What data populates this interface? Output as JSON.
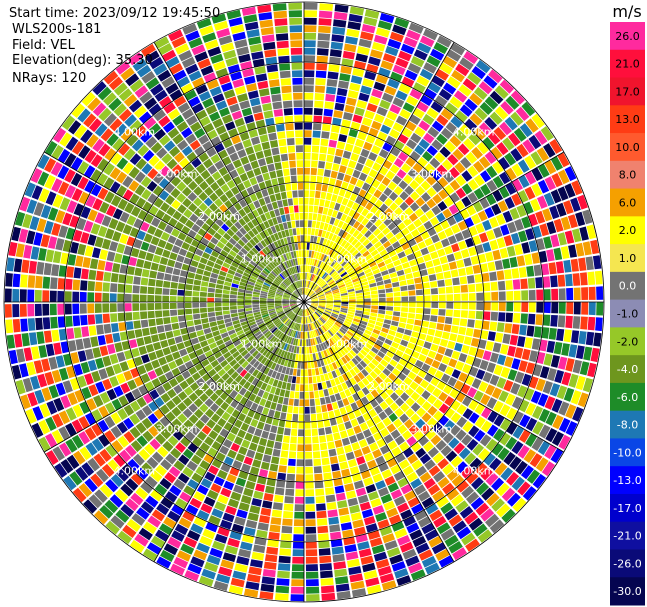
{
  "chart_data": {
    "type": "heatmap",
    "subtype": "radar-ppi",
    "info": {
      "start": "Start time: 2023/09/12 19:45:50",
      "site": "WLS200s-181",
      "field": "Field: VEL",
      "elevation": "Elevation(deg): 35.30",
      "nrays": "NRays: 120"
    },
    "nrays": 120,
    "unit": "m/s",
    "range_ring_labels": [
      "1.00km",
      "2.00km",
      "3.00km",
      "4.00km"
    ],
    "range_rings_km": [
      1,
      2,
      3,
      4,
      5
    ],
    "colorbar": [
      {
        "label": "26.0",
        "color": "#ff2a9e"
      },
      {
        "label": "21.0",
        "color": "#ff0f3c"
      },
      {
        "label": "17.0",
        "color": "#f0142d"
      },
      {
        "label": "13.0",
        "color": "#ff3c14"
      },
      {
        "label": "10.0",
        "color": "#ff5a2e"
      },
      {
        "label": "8.0",
        "color": "#f0826e"
      },
      {
        "label": "6.0",
        "color": "#f5a000"
      },
      {
        "label": "2.0",
        "color": "#ffff00"
      },
      {
        "label": "1.0",
        "color": "#f5e650"
      },
      {
        "label": "0.0",
        "color": "#737373"
      },
      {
        "label": "-1.0",
        "color": "#8c8cb4"
      },
      {
        "label": "-2.0",
        "color": "#96c828"
      },
      {
        "label": "-4.0",
        "color": "#6e961e"
      },
      {
        "label": "-6.0",
        "color": "#1e8c28"
      },
      {
        "label": "-8.0",
        "color": "#1e78b4"
      },
      {
        "label": "-10.0",
        "color": "#0a46e6"
      },
      {
        "label": "-13.0",
        "color": "#0000ff"
      },
      {
        "label": "-17.0",
        "color": "#0000cd"
      },
      {
        "label": "-21.0",
        "color": "#0f0fa0"
      },
      {
        "label": "-26.0",
        "color": "#0a0a78"
      },
      {
        "label": "-30.0",
        "color": "#050550"
      }
    ],
    "pattern": {
      "near_positive_color": "#ffff00",
      "near_negative_color": "#6e961e",
      "noise_colors": [
        "#ff2a9e",
        "#ff0f3c",
        "#0000ff",
        "#0a0a78",
        "#96c828",
        "#ffff00",
        "#737373",
        "#1e78b4",
        "#f5a000",
        "#050550",
        "#1e8c28",
        "#ff3c14"
      ]
    }
  }
}
